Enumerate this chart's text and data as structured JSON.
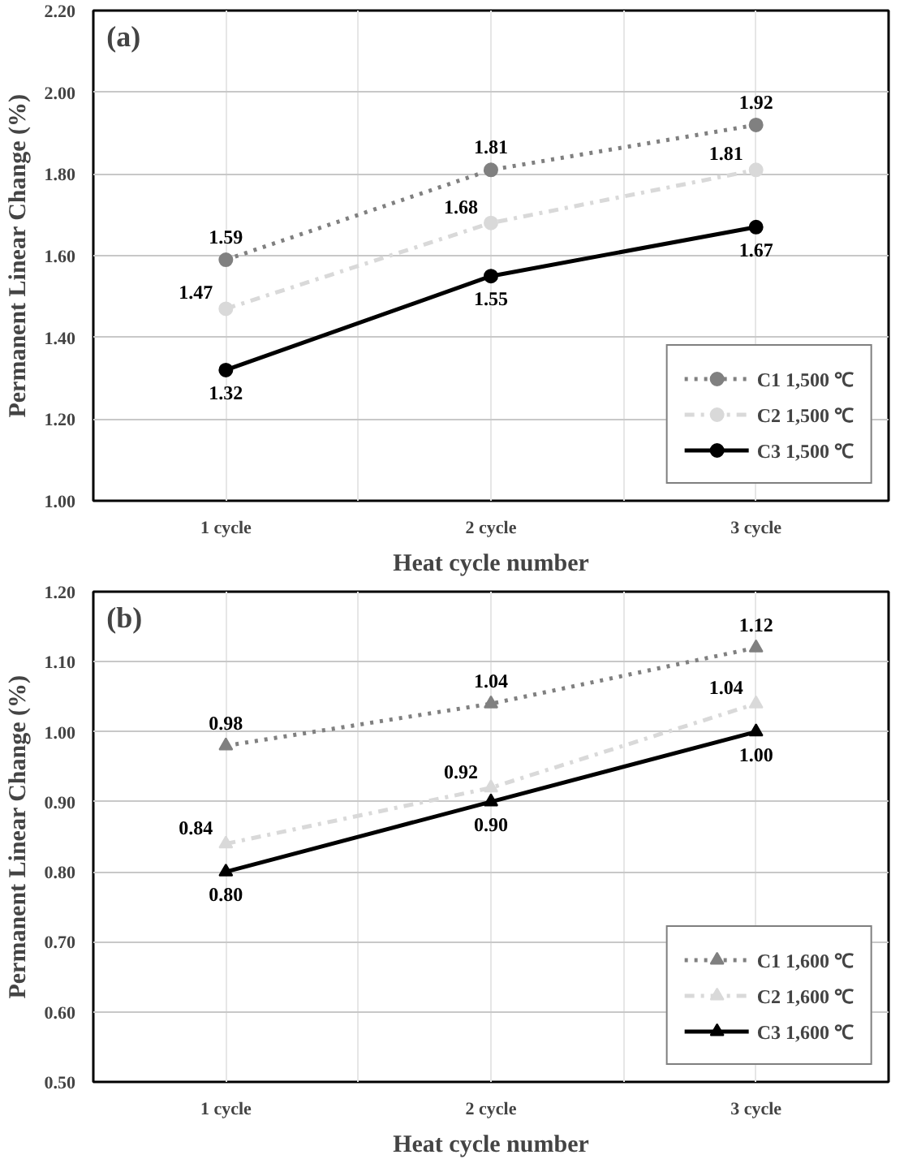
{
  "chart_data": [
    {
      "type": "line",
      "title": "(a)",
      "xlabel": "Heat cycle number",
      "ylabel": "Permanent Linear Change (%)",
      "categories": [
        "1 cycle",
        "2 cycle",
        "3 cycle"
      ],
      "series": [
        {
          "name": "C1 1,500 ℃",
          "color": "#808080",
          "values": [
            1.59,
            1.81,
            1.92
          ],
          "value_labels": [
            "1.59",
            "1.81",
            "1.92"
          ],
          "line_style": "dotted",
          "marker": "circle"
        },
        {
          "name": "C2 1,500 ℃",
          "color": "#d9d9d9",
          "values": [
            1.47,
            1.68,
            1.81
          ],
          "value_labels": [
            "1.47",
            "1.68",
            "1.81"
          ],
          "line_style": "dashdot",
          "marker": "circle"
        },
        {
          "name": "C3 1,500 ℃",
          "color": "#000000",
          "values": [
            1.32,
            1.55,
            1.67
          ],
          "value_labels": [
            "1.32",
            "1.55",
            "1.67"
          ],
          "line_style": "solid",
          "marker": "circle"
        }
      ],
      "ylim": [
        1.0,
        2.2
      ],
      "yticks": [
        {
          "value": 1.0,
          "label": "1.00"
        },
        {
          "value": 1.2,
          "label": "1.20"
        },
        {
          "value": 1.4,
          "label": "1.40"
        },
        {
          "value": 1.6,
          "label": "1.60"
        },
        {
          "value": 1.8,
          "label": "1.80"
        },
        {
          "value": 2.0,
          "label": "2.00"
        },
        {
          "value": 2.2,
          "label": "2.20"
        }
      ],
      "grid": true,
      "legend": "bottom right"
    },
    {
      "type": "line",
      "title": "(b)",
      "xlabel": "Heat cycle number",
      "ylabel": "Permanent Linear Change (%)",
      "categories": [
        "1 cycle",
        "2 cycle",
        "3 cycle"
      ],
      "series": [
        {
          "name": "C1 1,600 ℃",
          "color": "#808080",
          "values": [
            0.98,
            1.04,
            1.12
          ],
          "value_labels": [
            "0.98",
            "1.04",
            "1.12"
          ],
          "line_style": "dotted",
          "marker": "triangle"
        },
        {
          "name": "C2 1,600 ℃",
          "color": "#d9d9d9",
          "values": [
            0.84,
            0.92,
            1.04
          ],
          "value_labels": [
            "0.84",
            "0.92",
            "1.04"
          ],
          "line_style": "dashdot",
          "marker": "triangle"
        },
        {
          "name": "C3 1,600 ℃",
          "color": "#000000",
          "values": [
            0.8,
            0.9,
            1.0
          ],
          "value_labels": [
            "0.80",
            "0.90",
            "1.00"
          ],
          "line_style": "solid",
          "marker": "triangle"
        }
      ],
      "ylim": [
        0.5,
        1.2
      ],
      "yticks": [
        {
          "value": 0.5,
          "label": "0.50"
        },
        {
          "value": 0.6,
          "label": "0.60"
        },
        {
          "value": 0.7,
          "label": "0.70"
        },
        {
          "value": 0.8,
          "label": "0.80"
        },
        {
          "value": 0.9,
          "label": "0.90"
        },
        {
          "value": 1.0,
          "label": "1.00"
        },
        {
          "value": 1.1,
          "label": "1.10"
        },
        {
          "value": 1.2,
          "label": "1.20"
        }
      ],
      "grid": true,
      "legend": "bottom right"
    }
  ]
}
